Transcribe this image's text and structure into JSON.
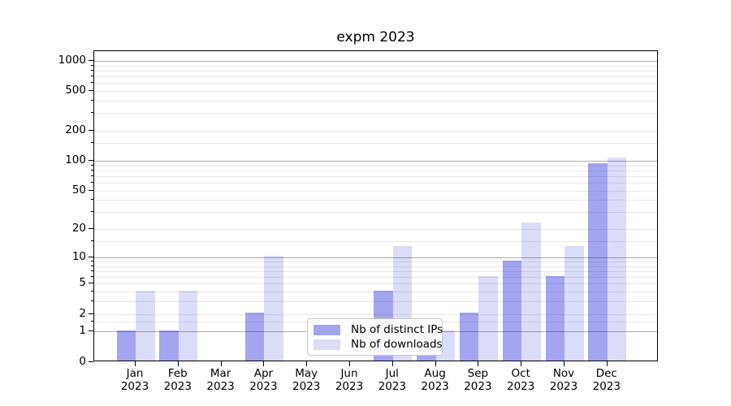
{
  "chart_data": {
    "type": "bar",
    "title": "expm 2023",
    "xlabel": "",
    "ylabel": "",
    "yscale": "log1p",
    "grid": true,
    "legend_position": "lower center",
    "categories": [
      "Jan",
      "Feb",
      "Mar",
      "Apr",
      "May",
      "Jun",
      "Jul",
      "Aug",
      "Sep",
      "Oct",
      "Nov",
      "Dec"
    ],
    "xtick_year": "2023",
    "yticks": [
      0,
      1,
      2,
      5,
      10,
      20,
      50,
      100,
      200,
      500,
      1000
    ],
    "ylim": [
      0,
      1400
    ],
    "series": [
      {
        "name": "Nb of distinct IPs",
        "color": "#a3a5f1",
        "values": [
          1,
          1,
          0,
          2,
          0,
          0,
          4,
          1,
          2,
          9,
          6,
          92
        ]
      },
      {
        "name": "Nb of downloads",
        "color": "#dadcf8",
        "values": [
          4,
          4,
          0,
          10,
          0,
          0,
          13,
          1,
          6,
          23,
          13,
          105
        ]
      }
    ]
  }
}
